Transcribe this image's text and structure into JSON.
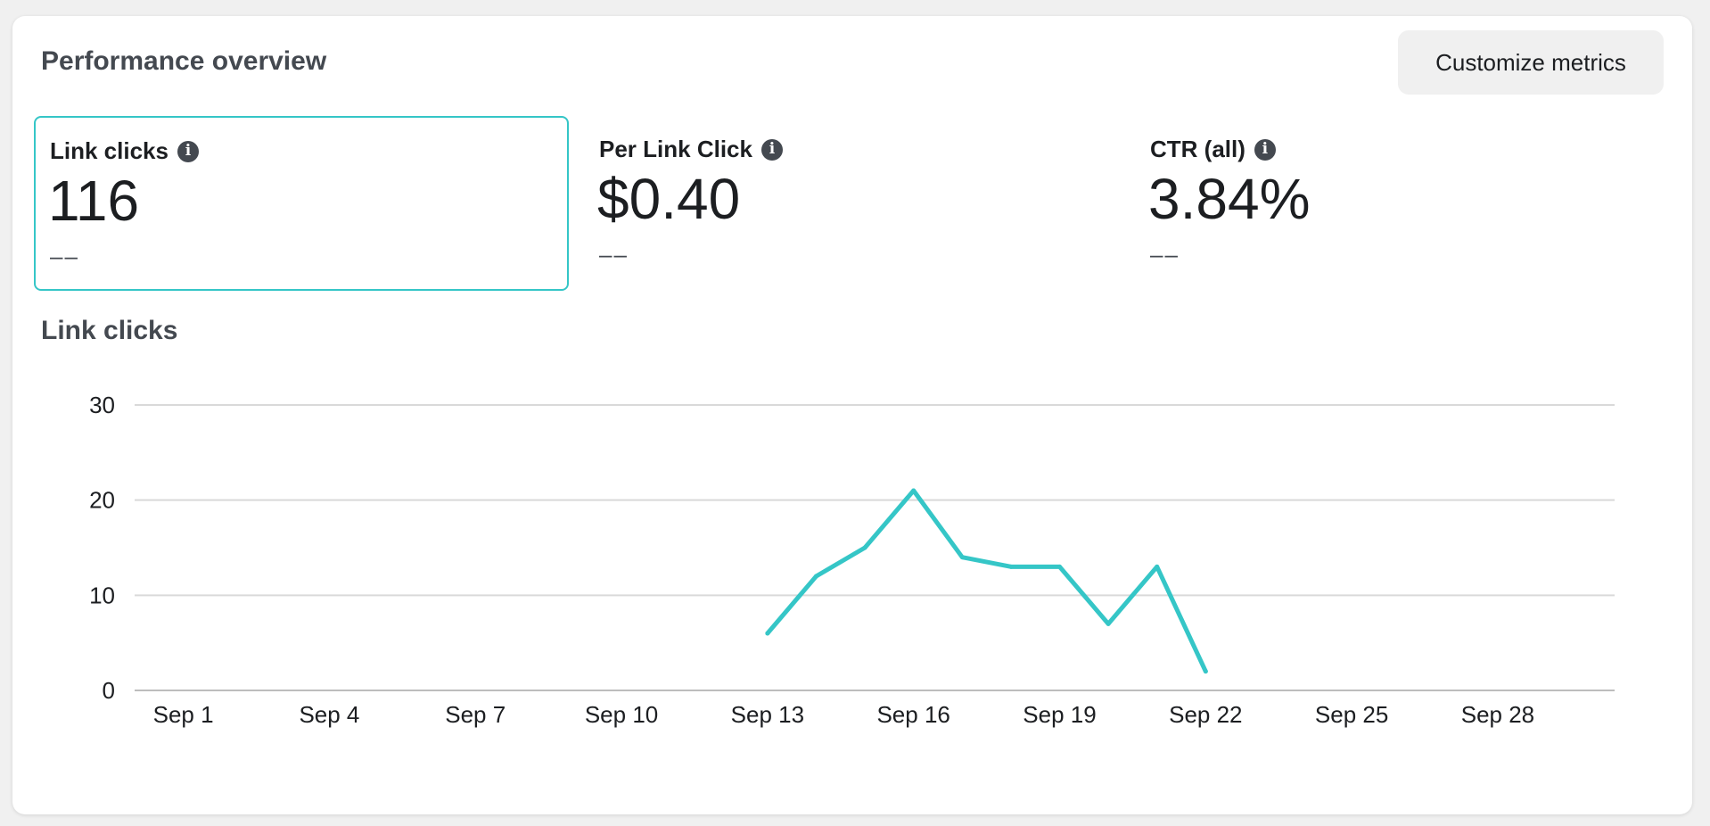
{
  "header": {
    "title": "Performance overview",
    "customize_label": "Customize metrics"
  },
  "metrics": [
    {
      "label": "Link clicks",
      "value": "116",
      "sub": "––",
      "selected": true
    },
    {
      "label": "Per Link Click",
      "value": "$0.40",
      "sub": "––",
      "selected": false
    },
    {
      "label": "CTR (all)",
      "value": "3.84%",
      "sub": "––",
      "selected": false
    }
  ],
  "chart_title": "Link clicks",
  "colors": {
    "accent": "#35c6c7",
    "grid": "#d9d9d9",
    "button_bg": "#f0f0f0"
  },
  "icons": {
    "info": "info-icon"
  },
  "chart_data": {
    "type": "line",
    "title": "Link clicks",
    "xlabel": "",
    "ylabel": "",
    "x_tick_labels": [
      "Sep 1",
      "Sep 4",
      "Sep 7",
      "Sep 10",
      "Sep 13",
      "Sep 16",
      "Sep 19",
      "Sep 22",
      "Sep 25",
      "Sep 28"
    ],
    "x_ticks_day": [
      1,
      4,
      7,
      10,
      13,
      16,
      19,
      22,
      25,
      28
    ],
    "xlim_day": [
      0,
      30.4
    ],
    "ylim": [
      0,
      30
    ],
    "y_ticks": [
      0,
      10,
      20,
      30
    ],
    "grid": true,
    "series": [
      {
        "x": [
          "Sep 13",
          "Sep 14",
          "Sep 15",
          "Sep 16",
          "Sep 17",
          "Sep 18",
          "Sep 19",
          "Sep 20",
          "Sep 21",
          "Sep 22"
        ],
        "x_day": [
          13,
          14,
          15,
          16,
          17,
          18,
          19,
          20,
          21,
          22
        ],
        "values": [
          6,
          12,
          15,
          21,
          14,
          13,
          13,
          7,
          13,
          2
        ]
      }
    ]
  }
}
